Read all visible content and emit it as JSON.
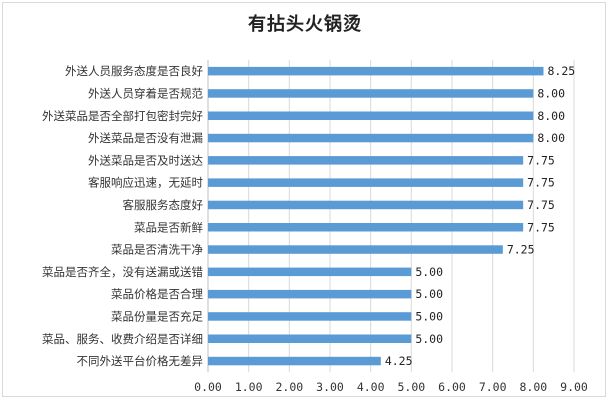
{
  "colors": {
    "bar": "#5b9bd5",
    "grid": "#d9d9d9",
    "axis": "#bfbfbf"
  },
  "chart_data": {
    "type": "bar",
    "orientation": "horizontal",
    "title": "有拈头火锅烫",
    "categories": [
      "外送人员服务态度是否良好",
      "外送人员穿着是否规范",
      "外送菜品是否全部打包密封完好",
      "外送菜品是否没有泄漏",
      "外送菜品是否及时送达",
      "客服响应迅速，无延时",
      "客服服务态度好",
      "菜品是否新鲜",
      "菜品是否清洗干净",
      "菜品是否齐全，没有送漏或送错",
      "菜品价格是否合理",
      "菜品份量是否充足",
      "菜品、服务、收费介绍是否详细",
      "不同外送平台价格无差异"
    ],
    "values": [
      8.25,
      8.0,
      8.0,
      8.0,
      7.75,
      7.75,
      7.75,
      7.75,
      7.25,
      5.0,
      5.0,
      5.0,
      5.0,
      4.25
    ],
    "value_labels": [
      "8.25",
      "8.00",
      "8.00",
      "8.00",
      "7.75",
      "7.75",
      "7.75",
      "7.75",
      "7.25",
      "5.00",
      "5.00",
      "5.00",
      "5.00",
      "4.25"
    ],
    "xlim": [
      0,
      9
    ],
    "x_ticks": [
      "0.00",
      "1.00",
      "2.00",
      "3.00",
      "4.00",
      "5.00",
      "6.00",
      "7.00",
      "8.00",
      "9.00"
    ],
    "xlabel": "",
    "ylabel": "",
    "grid": true,
    "legend": "none"
  }
}
